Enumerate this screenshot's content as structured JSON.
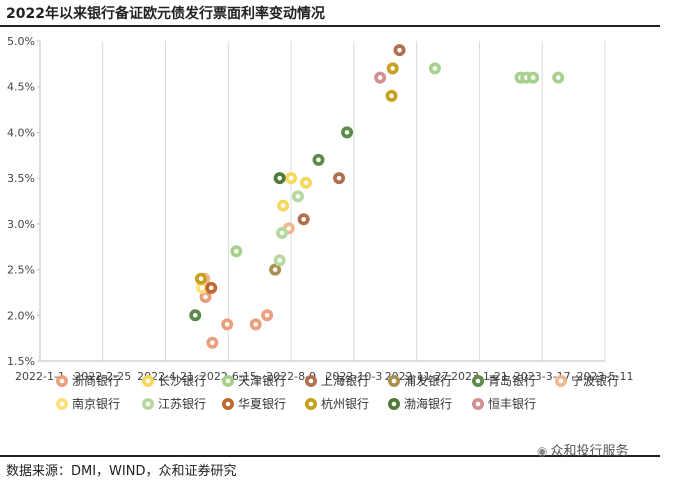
{
  "header": {
    "title": "2022年以来银行备证欧元债发行票面利率变动情况"
  },
  "footer": {
    "source": "数据来源：DMI，WIND，众和证券研究",
    "watermark": "众和投行服务"
  },
  "chart_data": {
    "type": "scatter",
    "title": "2022年以来银行备证欧元债发行票面利率变动情况",
    "x_ticks": [
      "2022-1-1",
      "2022-2-25",
      "2022-4-21",
      "2022-6-15",
      "2022-8-9",
      "2022-10-3",
      "2022-11-27",
      "2023-1-21",
      "2023-3-17",
      "2023-5-11"
    ],
    "y_ticks": [
      "5.0%",
      "4.5%",
      "4.0%",
      "3.5%",
      "3.0%",
      "2.5%",
      "2.0%",
      "1.5%"
    ],
    "xlim": [
      "2022-1-1",
      "2023-5-11"
    ],
    "ylim": [
      1.5,
      5.0
    ],
    "grid": "vertical",
    "legend_position": "bottom",
    "series": [
      {
        "name": "浙商银行",
        "color": "#E8A07E",
        "points": [
          [
            "2022-5-26",
            2.2
          ],
          [
            "2022-6-1",
            1.7
          ],
          [
            "2022-6-14",
            1.9
          ],
          [
            "2022-7-9",
            1.9
          ],
          [
            "2022-7-19",
            2.0
          ]
        ]
      },
      {
        "name": "长沙银行",
        "color": "#F6D95C",
        "points": [
          [
            "2022-5-24",
            2.35
          ],
          [
            "2022-8-2",
            3.2
          ],
          [
            "2022-8-9",
            3.5
          ],
          [
            "2022-8-22",
            3.45
          ]
        ]
      },
      {
        "name": "天津银行",
        "color": "#A8D08D",
        "points": [
          [
            "2022-6-22",
            2.7
          ],
          [
            "2022-12-13",
            4.7
          ],
          [
            "2023-2-26",
            4.6
          ],
          [
            "2023-3-3",
            4.6
          ],
          [
            "2023-3-9",
            4.6
          ],
          [
            "2023-3-31",
            4.6
          ]
        ]
      },
      {
        "name": "上海银行",
        "color": "#B07050",
        "points": [
          [
            "2022-8-20",
            3.05
          ],
          [
            "2022-9-20",
            3.5
          ],
          [
            "2022-11-12",
            4.9
          ]
        ]
      },
      {
        "name": "浦发银行",
        "color": "#A89050",
        "points": [
          [
            "2022-7-26",
            2.5
          ]
        ]
      },
      {
        "name": "青岛银行",
        "color": "#5E8A4A",
        "points": [
          [
            "2022-5-17",
            2.0
          ],
          [
            "2022-9-2",
            3.7
          ],
          [
            "2022-9-27",
            4.0
          ]
        ]
      },
      {
        "name": "宁波银行",
        "color": "#F0B890",
        "points": [
          [
            "2022-5-25",
            2.4
          ],
          [
            "2022-8-7",
            2.95
          ]
        ]
      },
      {
        "name": "南京银行",
        "color": "#FCE07A",
        "points": [
          [
            "2022-5-23",
            2.3
          ]
        ]
      },
      {
        "name": "江苏银行",
        "color": "#B5D9A0",
        "points": [
          [
            "2022-7-30",
            2.6
          ],
          [
            "2022-8-1",
            2.9
          ],
          [
            "2022-8-15",
            3.3
          ]
        ]
      },
      {
        "name": "华夏银行",
        "color": "#C06830",
        "points": [
          [
            "2022-5-31",
            2.3
          ]
        ]
      },
      {
        "name": "杭州银行",
        "color": "#C8A020",
        "points": [
          [
            "2022-5-22",
            2.4
          ],
          [
            "2022-11-5",
            4.4
          ],
          [
            "2022-11-6",
            4.7
          ]
        ]
      },
      {
        "name": "渤海银行",
        "color": "#4E7A3A",
        "points": [
          [
            "2022-7-30",
            3.5
          ]
        ]
      },
      {
        "name": "恒丰银行",
        "color": "#D09090",
        "points": [
          [
            "2022-10-26",
            4.6
          ]
        ]
      }
    ]
  }
}
